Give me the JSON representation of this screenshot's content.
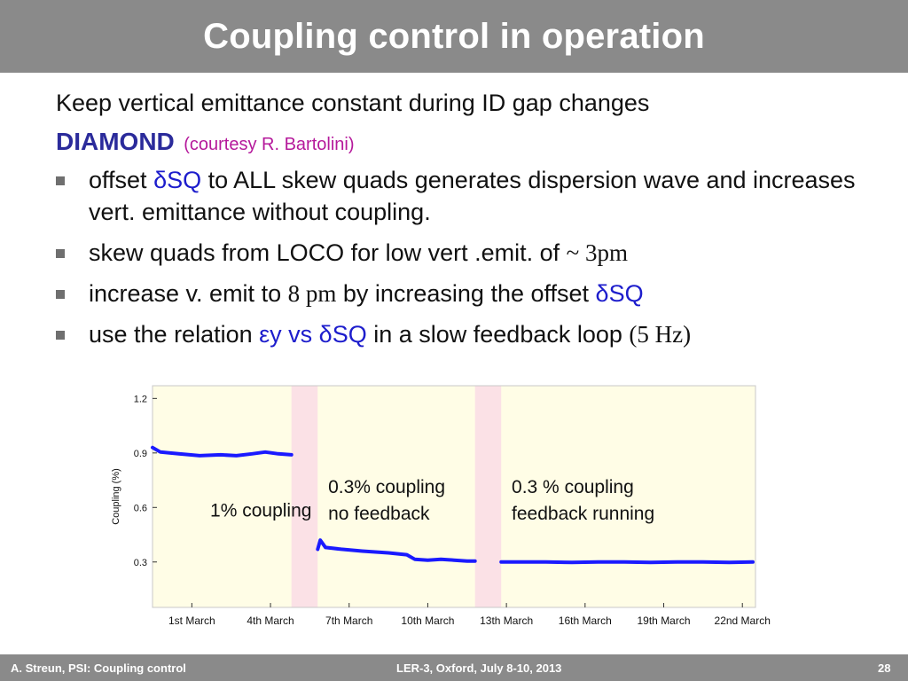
{
  "slide": {
    "title": "Coupling control in operation",
    "subtitle": "Keep vertical emittance constant during ID gap changes",
    "section": "DIAMOND",
    "courtesy": "(courtesy R. Bartolini)",
    "bullets": [
      {
        "a": "offset ",
        "b": "δSQ",
        "c": " to ALL skew quads generates dispersion wave and increases vert. emittance without coupling."
      },
      {
        "a": "skew quads from LOCO for low vert .emit. of ",
        "b": "~ 3pm"
      },
      {
        "a": "increase v. emit to ",
        "b": "8 pm",
        "c": " by increasing the offset ",
        "d": "δSQ"
      },
      {
        "a": "use the relation ",
        "b": "εy vs δSQ",
        "c": " in a slow feedback loop ",
        "d": "(5 Hz)"
      }
    ],
    "footer": {
      "left": "A. Streun, PSI: Coupling control",
      "center": "LER-3, Oxford, July 8-10, 2013",
      "page": "28"
    }
  },
  "colors": {
    "plot_background": "#fffde6",
    "gap_band": "#fbe1e6",
    "series": "#1a1aff",
    "title_bar": "#8a8a8a"
  },
  "chart_data": {
    "type": "line",
    "ylabel": "Coupling (%)",
    "xlabel": "",
    "yticks": [
      0.3,
      0.6,
      0.9,
      1.2
    ],
    "ylim": [
      0.05,
      1.27
    ],
    "xlim": [
      0,
      23
    ],
    "xticks": [
      {
        "label": "1st March",
        "x": 1.5
      },
      {
        "label": "4th March",
        "x": 4.5
      },
      {
        "label": "7th March",
        "x": 7.5
      },
      {
        "label": "10th March",
        "x": 10.5
      },
      {
        "label": "13th March",
        "x": 13.5
      },
      {
        "label": "16th March",
        "x": 16.5
      },
      {
        "label": "19th March",
        "x": 19.5
      },
      {
        "label": "22nd March",
        "x": 22.5
      }
    ],
    "bands": [
      [
        5.3,
        6.3
      ],
      [
        12.3,
        13.3
      ]
    ],
    "annotations": [
      {
        "text": [
          "1% coupling"
        ],
        "x": 2.2,
        "y": 0.55
      },
      {
        "text": [
          "0.3% coupling",
          "no feedback"
        ],
        "x": 6.7,
        "y": 0.68
      },
      {
        "text": [
          "0.3 % coupling",
          "feedback running"
        ],
        "x": 13.7,
        "y": 0.68
      }
    ],
    "series": [
      {
        "x": [
          0,
          0.3,
          1,
          1.8,
          2.6,
          3.2,
          3.8,
          4.3,
          4.8,
          5.3
        ],
        "y": [
          0.93,
          0.905,
          0.895,
          0.885,
          0.89,
          0.885,
          0.895,
          0.905,
          0.895,
          0.89
        ]
      },
      {
        "x": [
          6.3,
          6.4,
          6.6,
          7.2,
          8,
          9,
          9.7,
          10,
          10.5,
          11,
          11.5,
          12,
          12.3
        ],
        "y": [
          0.37,
          0.42,
          0.38,
          0.37,
          0.36,
          0.35,
          0.34,
          0.315,
          0.31,
          0.315,
          0.31,
          0.305,
          0.305
        ]
      },
      {
        "x": [
          13.3,
          14,
          15,
          16,
          17,
          18,
          19,
          20,
          21,
          22,
          22.9
        ],
        "y": [
          0.3,
          0.3,
          0.3,
          0.298,
          0.3,
          0.3,
          0.298,
          0.3,
          0.3,
          0.298,
          0.3
        ]
      }
    ]
  }
}
